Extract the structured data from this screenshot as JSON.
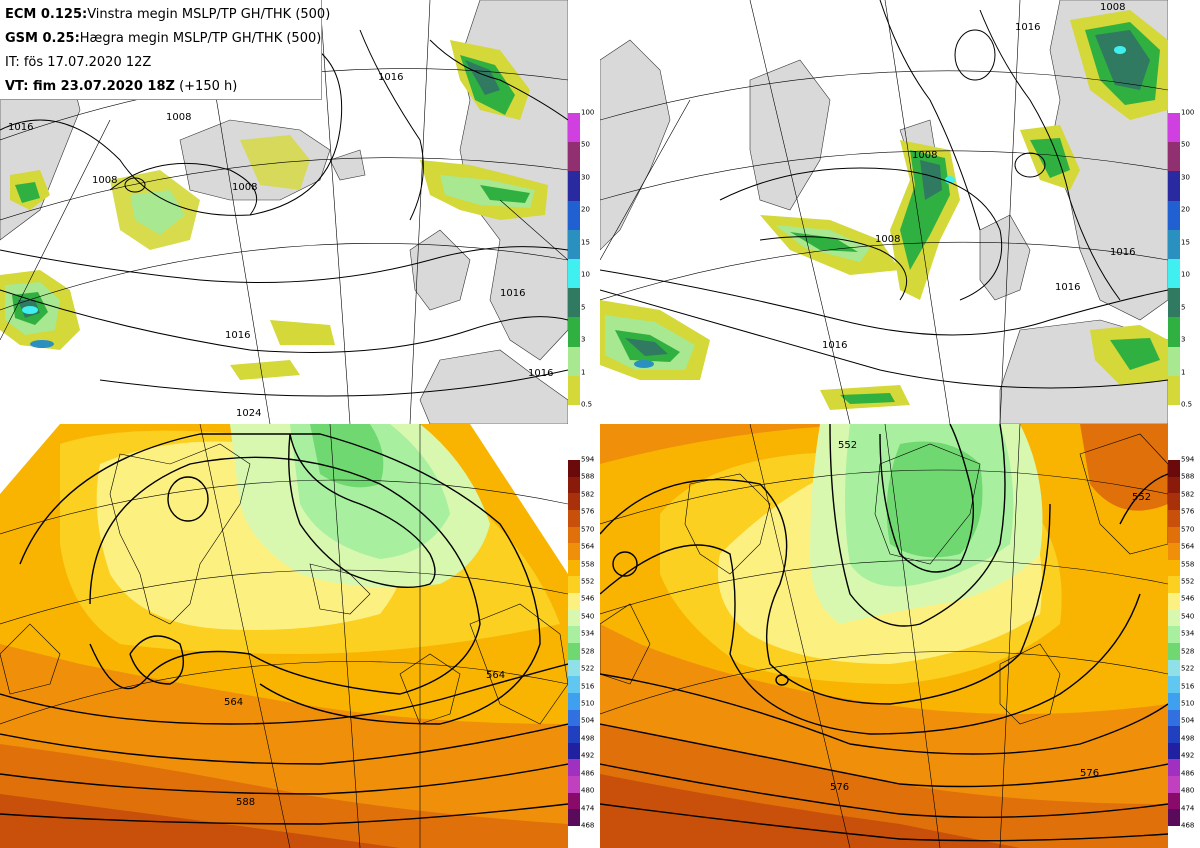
{
  "info": {
    "line1_bold": "ECM 0.125:",
    "line1_text": "Vinstra megin MSLP/TP GH/THK (500)",
    "line2_bold": "GSM 0.25:",
    "line2_text": "Hægra megin MSLP/TP GH/THK (500)",
    "line3": "IT: fös 17.07.2020 12Z",
    "line4_bold": "VT: fim 23.07.2020 18Z",
    "line4_text": "(+150 h)"
  },
  "precip_legend": {
    "levels": [
      "100",
      "50",
      "30",
      "20",
      "15",
      "10",
      "5",
      "3",
      "1",
      "0.5"
    ],
    "colors": [
      "#d040e0",
      "#903070",
      "#2a2aa0",
      "#2060d0",
      "#2a90c0",
      "#40f0f0",
      "#2f7a60",
      "#30b040",
      "#a8e890",
      "#d4d838"
    ]
  },
  "gh_legend": {
    "levels": [
      "594",
      "588",
      "582",
      "576",
      "570",
      "564",
      "558",
      "552",
      "546",
      "540",
      "534",
      "528",
      "522",
      "516",
      "510",
      "504",
      "498",
      "492",
      "486",
      "480",
      "474",
      "468"
    ],
    "colors": [
      "#6a0a0a",
      "#8a1a0a",
      "#a8300a",
      "#c8500a",
      "#e0700a",
      "#f0900a",
      "#f8b400",
      "#fcd020",
      "#fcf080",
      "#d8f8b0",
      "#a8f0a0",
      "#70d870",
      "#90e0e8",
      "#60c8f0",
      "#40a0f0",
      "#3070e0",
      "#2040c0",
      "#2020a0",
      "#a030c0",
      "#c040c0",
      "#8a0a6a",
      "#5a0a5a"
    ]
  },
  "contour_labels": {
    "tl": [
      "1008",
      "1016",
      "1008",
      "1008",
      "1016",
      "1016",
      "1016",
      "1024",
      "1016"
    ],
    "tr": [
      "1016",
      "1008",
      "1008",
      "1008",
      "1016",
      "1016",
      "1016"
    ],
    "bl": [
      "564",
      "564",
      "588"
    ],
    "br": [
      "552",
      "552",
      "576",
      "576"
    ]
  }
}
